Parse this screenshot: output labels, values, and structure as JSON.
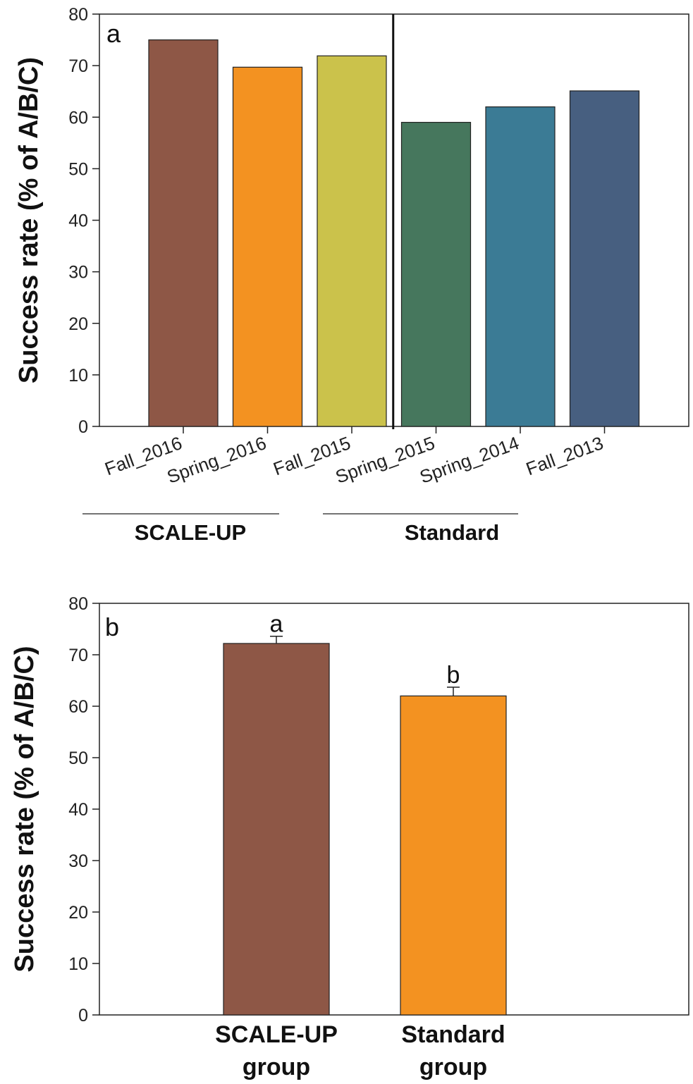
{
  "chart_data": [
    {
      "type": "bar",
      "panel_label": "a",
      "ylabel": "Success rate (% of A/B/C)",
      "ylim": [
        0,
        80
      ],
      "yticks": [
        0,
        10,
        20,
        30,
        40,
        50,
        60,
        70,
        80
      ],
      "categories": [
        "Fall_2016",
        "Spring_2016",
        "Fall_2015",
        "Spring_2015",
        "Spring_2014",
        "Fall_2013"
      ],
      "values": [
        75,
        69.7,
        71.9,
        59,
        62,
        65.1
      ],
      "colors": [
        "#8e5746",
        "#f39221",
        "#cbc24b",
        "#46775d",
        "#3b7b95",
        "#475f80"
      ],
      "groups": [
        {
          "label": "SCALE-UP",
          "categories": [
            "Fall_2016",
            "Spring_2016",
            "Fall_2015"
          ]
        },
        {
          "label": "Standard",
          "categories": [
            "Spring_2015",
            "Spring_2014",
            "Fall_2013"
          ]
        }
      ],
      "grid": false
    },
    {
      "type": "bar",
      "panel_label": "b",
      "ylabel": "Success rate (% of A/B/C)",
      "ylim": [
        0,
        80
      ],
      "yticks": [
        0,
        10,
        20,
        30,
        40,
        50,
        60,
        70,
        80
      ],
      "categories": [
        "SCALE-UP group",
        "Standard group"
      ],
      "category_lines": [
        [
          "SCALE-UP",
          "group"
        ],
        [
          "Standard",
          "group"
        ]
      ],
      "values": [
        72.2,
        62
      ],
      "errors": [
        1.4,
        1.7
      ],
      "significance": [
        "a",
        "b"
      ],
      "colors": [
        "#8e5746",
        "#f39221"
      ],
      "grid": false
    }
  ]
}
